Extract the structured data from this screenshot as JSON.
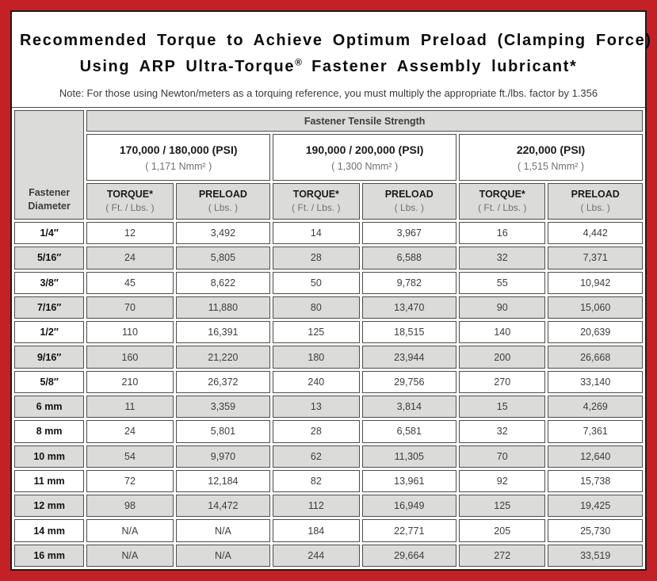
{
  "colors": {
    "frame_red": "#C42127",
    "cell_gray": "#DBDBD9",
    "grid_line": "#4C4C4C",
    "subtext_gray": "#707070"
  },
  "title": {
    "line1": "Recommended Torque to Achieve Optimum Preload (Clamping Force)",
    "line2_pre": "Using ARP Ultra-Torque",
    "line2_reg": "®",
    "line2_post": " Fastener Assembly lubricant*"
  },
  "note": "Note: For those using Newton/meters as a torquing reference, you must multiply the appropriate ft./lbs. factor by 1.356",
  "table": {
    "corner_header": "Fastener Diameter",
    "strength_header": "Fastener Tensile Strength",
    "groups": [
      {
        "psi": "170,000 / 180,000 (PSI)",
        "nmm": "( 1,171 Nmm² )"
      },
      {
        "psi": "190,000 / 200,000 (PSI)",
        "nmm": "( 1,300 Nmm² )"
      },
      {
        "psi": "220,000 (PSI)",
        "nmm": "( 1,515 Nmm² )"
      }
    ],
    "col_headers": {
      "torque": "TORQUE*",
      "torque_units": "( Ft. / Lbs. )",
      "preload": "PRELOAD",
      "preload_units": "( Lbs. )"
    },
    "rows": [
      {
        "diameter": "1/4″",
        "values": [
          "12",
          "3,492",
          "14",
          "3,967",
          "16",
          "4,442"
        ]
      },
      {
        "diameter": "5/16″",
        "values": [
          "24",
          "5,805",
          "28",
          "6,588",
          "32",
          "7,371"
        ]
      },
      {
        "diameter": "3/8″",
        "values": [
          "45",
          "8,622",
          "50",
          "9,782",
          "55",
          "10,942"
        ]
      },
      {
        "diameter": "7/16″",
        "values": [
          "70",
          "11,880",
          "80",
          "13,470",
          "90",
          "15,060"
        ]
      },
      {
        "diameter": "1/2″",
        "values": [
          "110",
          "16,391",
          "125",
          "18,515",
          "140",
          "20,639"
        ]
      },
      {
        "diameter": "9/16″",
        "values": [
          "160",
          "21,220",
          "180",
          "23,944",
          "200",
          "26,668"
        ]
      },
      {
        "diameter": "5/8″",
        "values": [
          "210",
          "26,372",
          "240",
          "29,756",
          "270",
          "33,140"
        ]
      },
      {
        "diameter": "6 mm",
        "values": [
          "11",
          "3,359",
          "13",
          "3,814",
          "15",
          "4,269"
        ]
      },
      {
        "diameter": "8 mm",
        "values": [
          "24",
          "5,801",
          "28",
          "6,581",
          "32",
          "7,361"
        ]
      },
      {
        "diameter": "10 mm",
        "values": [
          "54",
          "9,970",
          "62",
          "11,305",
          "70",
          "12,640"
        ]
      },
      {
        "diameter": "11 mm",
        "values": [
          "72",
          "12,184",
          "82",
          "13,961",
          "92",
          "15,738"
        ]
      },
      {
        "diameter": "12 mm",
        "values": [
          "98",
          "14,472",
          "112",
          "16,949",
          "125",
          "19,425"
        ]
      },
      {
        "diameter": "14 mm",
        "values": [
          "N/A",
          "N/A",
          "184",
          "22,771",
          "205",
          "25,730"
        ]
      },
      {
        "diameter": "16 mm",
        "values": [
          "N/A",
          "N/A",
          "244",
          "29,664",
          "272",
          "33,519"
        ]
      }
    ]
  }
}
